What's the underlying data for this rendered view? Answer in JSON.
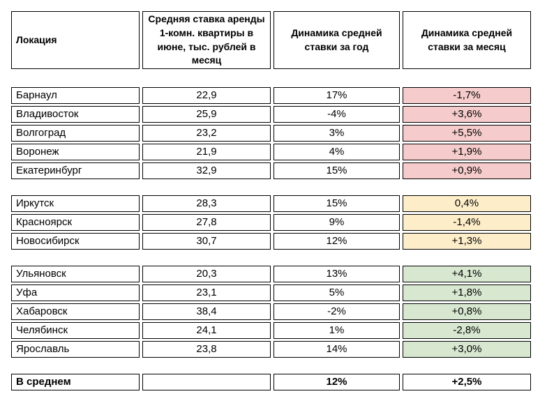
{
  "chart_data": {
    "type": "table",
    "columns": [
      "Локация",
      "Средняя ставка аренды 1-комн. квартиры в июне, тыс. рублей в месяц",
      "Динамика средней ставки за год",
      "Динамика средней ставки за месяц"
    ],
    "groups": [
      {
        "month_highlight": "#f5cbcb",
        "rows": [
          {
            "location": "Барнаул",
            "rate": "22,9",
            "year_change": "17%",
            "month_change": "-1,7%"
          },
          {
            "location": "Владивосток",
            "rate": "25,9",
            "year_change": "-4%",
            "month_change": "+3,6%"
          },
          {
            "location": "Волгоград",
            "rate": "23,2",
            "year_change": "3%",
            "month_change": "+5,5%"
          },
          {
            "location": "Воронеж",
            "rate": "21,9",
            "year_change": "4%",
            "month_change": "+1,9%"
          },
          {
            "location": "Екатеринбург",
            "rate": "32,9",
            "year_change": "15%",
            "month_change": "+0,9%"
          }
        ]
      },
      {
        "month_highlight": "#fdeec9",
        "rows": [
          {
            "location": "Иркутск",
            "rate": "28,3",
            "year_change": "15%",
            "month_change": "0,4%"
          },
          {
            "location": "Красноярск",
            "rate": "27,8",
            "year_change": "9%",
            "month_change": "-1,4%"
          },
          {
            "location": "Новосибирск",
            "rate": "30,7",
            "year_change": "12%",
            "month_change": "+1,3%"
          }
        ]
      },
      {
        "month_highlight": "#d7e7d0",
        "rows": [
          {
            "location": "Ульяновск",
            "rate": "20,3",
            "year_change": "13%",
            "month_change": "+4,1%"
          },
          {
            "location": "Уфа",
            "rate": "23,1",
            "year_change": "5%",
            "month_change": "+1,8%"
          },
          {
            "location": "Хабаровск",
            "rate": "38,4",
            "year_change": "-2%",
            "month_change": "+0,8%"
          },
          {
            "location": "Челябинск",
            "rate": "24,1",
            "year_change": "1%",
            "month_change": "-2,8%"
          },
          {
            "location": "Ярославль",
            "rate": "23,8",
            "year_change": "14%",
            "month_change": "+3,0%"
          }
        ]
      }
    ],
    "summary_row": {
      "location": "В среднем",
      "rate": "",
      "year_change": "12%",
      "month_change": "+2,5%"
    },
    "highlight_colors": {
      "pink": "#f5cbcb",
      "yellow": "#fdeec9",
      "green": "#d7e7d0"
    },
    "border_color": "#000000"
  }
}
